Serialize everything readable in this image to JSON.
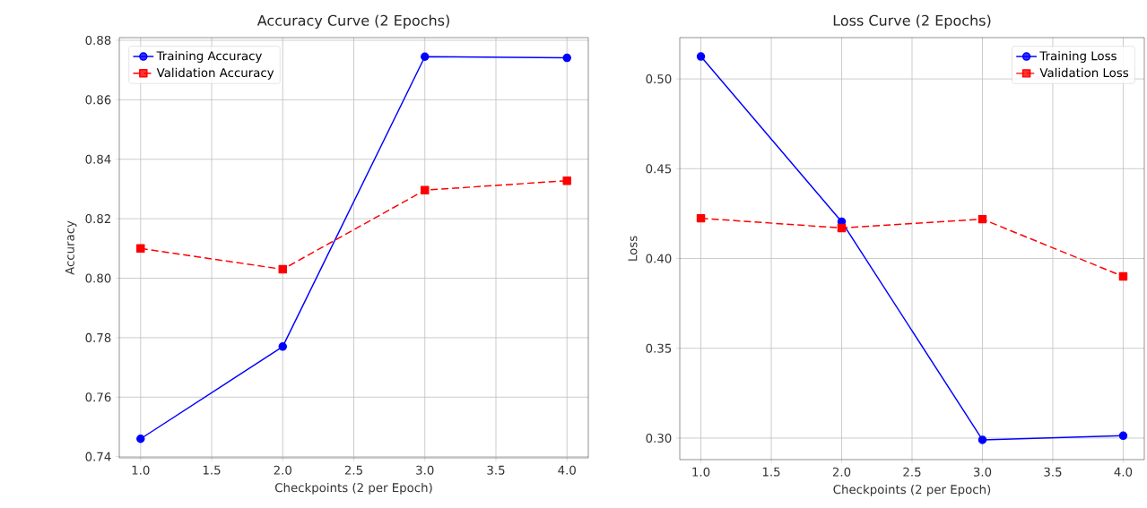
{
  "chart_data": [
    {
      "type": "line",
      "title": "Accuracy Curve (2 Epochs)",
      "xlabel": "Checkpoints (2 per Epoch)",
      "ylabel": "Accuracy",
      "x": [
        1,
        2,
        3,
        4
      ],
      "series": [
        {
          "name": "Training Accuracy",
          "color": "#0000ff",
          "values": [
            0.746,
            0.777,
            0.8745,
            0.8741
          ],
          "marker": "circle",
          "line_style": "solid"
        },
        {
          "name": "Validation Accuracy",
          "color": "#ff0000",
          "values": [
            0.81,
            0.803,
            0.8296,
            0.8328
          ],
          "marker": "square",
          "line_style": "dashed"
        }
      ],
      "xlim": [
        0.85,
        4.15
      ],
      "ylim": [
        0.7396,
        0.8809
      ],
      "xticks": [
        {
          "value": 1,
          "label": "1.0"
        },
        {
          "value": 1.5,
          "label": "1.5"
        },
        {
          "value": 2,
          "label": "2.0"
        },
        {
          "value": 2.5,
          "label": "2.5"
        },
        {
          "value": 3,
          "label": "3.0"
        },
        {
          "value": 3.5,
          "label": "3.5"
        },
        {
          "value": 4,
          "label": "4.0"
        }
      ],
      "yticks": [
        {
          "value": 0.74,
          "label": "0.74"
        },
        {
          "value": 0.76,
          "label": "0.76"
        },
        {
          "value": 0.78,
          "label": "0.78"
        },
        {
          "value": 0.8,
          "label": "0.80"
        },
        {
          "value": 0.82,
          "label": "0.82"
        },
        {
          "value": 0.84,
          "label": "0.84"
        },
        {
          "value": 0.86,
          "label": "0.86"
        },
        {
          "value": 0.88,
          "label": "0.88"
        }
      ],
      "grid": true,
      "legend": "top left"
    },
    {
      "type": "line",
      "title": "Loss Curve (2 Epochs)",
      "xlabel": "Checkpoints (2 per Epoch)",
      "ylabel": "Loss",
      "x": [
        1,
        2,
        3,
        4
      ],
      "series": [
        {
          "name": "Training Loss",
          "color": "#0000ff",
          "values": [
            0.5125,
            0.4205,
            0.299,
            0.3013
          ],
          "marker": "circle",
          "line_style": "solid"
        },
        {
          "name": "Validation Loss",
          "color": "#ff0000",
          "values": [
            0.4224,
            0.417,
            0.4219,
            0.39
          ],
          "marker": "square",
          "line_style": "dashed"
        }
      ],
      "xlim": [
        0.85,
        4.15
      ],
      "ylim": [
        0.288,
        0.523
      ],
      "xticks": [
        {
          "value": 1,
          "label": "1.0"
        },
        {
          "value": 1.5,
          "label": "1.5"
        },
        {
          "value": 2,
          "label": "2.0"
        },
        {
          "value": 2.5,
          "label": "2.5"
        },
        {
          "value": 3,
          "label": "3.0"
        },
        {
          "value": 3.5,
          "label": "3.5"
        },
        {
          "value": 4,
          "label": "4.0"
        }
      ],
      "yticks": [
        {
          "value": 0.3,
          "label": "0.30"
        },
        {
          "value": 0.35,
          "label": "0.35"
        },
        {
          "value": 0.4,
          "label": "0.40"
        },
        {
          "value": 0.45,
          "label": "0.45"
        },
        {
          "value": 0.5,
          "label": "0.50"
        }
      ],
      "grid": true,
      "legend": "top right"
    }
  ]
}
